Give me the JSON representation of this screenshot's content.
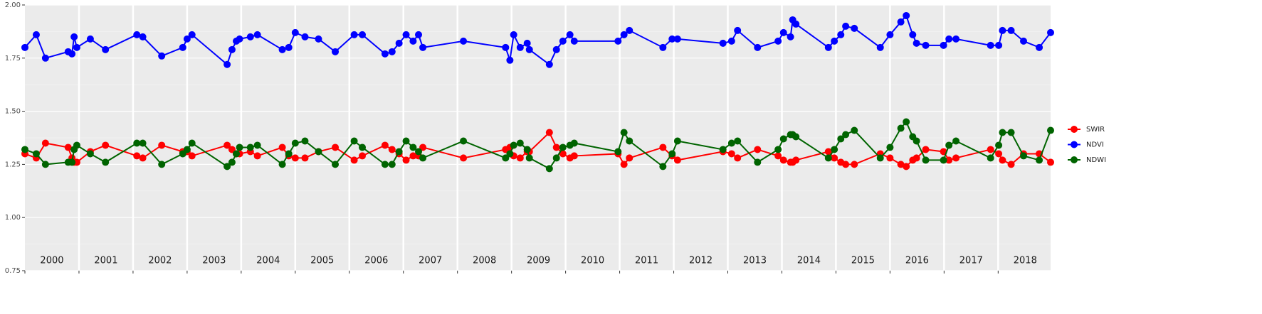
{
  "chart_data": {
    "type": "line",
    "x": [
      2000.0,
      2000.21,
      2000.38,
      2000.8,
      2000.87,
      2000.91,
      2000.96,
      2001.21,
      2001.49,
      2002.07,
      2002.18,
      2002.53,
      2002.92,
      2003.0,
      2003.09,
      2003.74,
      2003.83,
      2003.91,
      2003.97,
      2004.17,
      2004.3,
      2004.76,
      2004.88,
      2005.0,
      2005.18,
      2005.43,
      2005.74,
      2006.09,
      2006.24,
      2006.66,
      2006.79,
      2006.92,
      2007.05,
      2007.18,
      2007.28,
      2007.36,
      2008.11,
      2008.89,
      2008.97,
      2009.04,
      2009.16,
      2009.29,
      2009.33,
      2009.7,
      2009.83,
      2009.95,
      2010.08,
      2010.16,
      2010.97,
      2011.08,
      2011.18,
      2011.8,
      2011.97,
      2012.07,
      2012.91,
      2013.07,
      2013.18,
      2013.55,
      2013.93,
      2014.03,
      2014.16,
      2014.2,
      2014.26,
      2014.86,
      2014.97,
      2015.09,
      2015.18,
      2015.34,
      2015.82,
      2016.0,
      2016.2,
      2016.3,
      2016.42,
      2016.49,
      2016.66,
      2016.99,
      2017.09,
      2017.22,
      2017.86,
      2018.01,
      2018.08,
      2018.24,
      2018.47,
      2018.76,
      2018.97
    ],
    "series": [
      {
        "name": "SWIR",
        "color": "#ff0000",
        "values": [
          1.3,
          1.28,
          1.35,
          1.33,
          1.28,
          1.26,
          1.26,
          1.31,
          1.34,
          1.29,
          1.28,
          1.34,
          1.31,
          1.31,
          1.29,
          1.34,
          1.32,
          1.3,
          1.3,
          1.31,
          1.29,
          1.33,
          1.29,
          1.28,
          1.28,
          1.31,
          1.33,
          1.27,
          1.29,
          1.34,
          1.32,
          1.3,
          1.27,
          1.29,
          1.29,
          1.33,
          1.28,
          1.32,
          1.33,
          1.29,
          1.28,
          1.31,
          1.31,
          1.4,
          1.33,
          1.3,
          1.28,
          1.29,
          1.3,
          1.25,
          1.28,
          1.33,
          1.29,
          1.27,
          1.31,
          1.3,
          1.28,
          1.32,
          1.29,
          1.27,
          1.26,
          1.26,
          1.27,
          1.31,
          1.28,
          1.26,
          1.25,
          1.25,
          1.3,
          1.28,
          1.25,
          1.24,
          1.27,
          1.28,
          1.32,
          1.31,
          1.27,
          1.28,
          1.32,
          1.3,
          1.27,
          1.25,
          1.3,
          1.3,
          1.26
        ]
      },
      {
        "name": "NDVI",
        "color": "#0000ff",
        "values": [
          1.8,
          1.86,
          1.75,
          1.78,
          1.77,
          1.85,
          1.8,
          1.84,
          1.79,
          1.86,
          1.85,
          1.76,
          1.8,
          1.84,
          1.86,
          1.72,
          1.79,
          1.83,
          1.84,
          1.85,
          1.86,
          1.79,
          1.8,
          1.87,
          1.85,
          1.84,
          1.78,
          1.86,
          1.86,
          1.77,
          1.78,
          1.82,
          1.86,
          1.83,
          1.86,
          1.8,
          1.83,
          1.8,
          1.74,
          1.86,
          1.8,
          1.82,
          1.79,
          1.72,
          1.79,
          1.83,
          1.86,
          1.83,
          1.83,
          1.86,
          1.88,
          1.8,
          1.84,
          1.84,
          1.82,
          1.83,
          1.88,
          1.8,
          1.83,
          1.87,
          1.85,
          1.93,
          1.91,
          1.8,
          1.83,
          1.86,
          1.9,
          1.89,
          1.8,
          1.86,
          1.92,
          1.95,
          1.86,
          1.82,
          1.81,
          1.81,
          1.84,
          1.84,
          1.81,
          1.81,
          1.88,
          1.88,
          1.83,
          1.8,
          1.87
        ]
      },
      {
        "name": "NDWI",
        "color": "#006400",
        "values": [
          1.32,
          1.3,
          1.25,
          1.26,
          1.26,
          1.32,
          1.34,
          1.3,
          1.26,
          1.35,
          1.35,
          1.25,
          1.3,
          1.32,
          1.35,
          1.24,
          1.26,
          1.3,
          1.33,
          1.33,
          1.34,
          1.25,
          1.3,
          1.35,
          1.36,
          1.31,
          1.25,
          1.36,
          1.33,
          1.25,
          1.25,
          1.31,
          1.36,
          1.33,
          1.31,
          1.28,
          1.36,
          1.28,
          1.3,
          1.34,
          1.35,
          1.32,
          1.28,
          1.23,
          1.28,
          1.33,
          1.34,
          1.35,
          1.31,
          1.4,
          1.36,
          1.24,
          1.3,
          1.36,
          1.32,
          1.35,
          1.36,
          1.26,
          1.32,
          1.37,
          1.39,
          1.39,
          1.38,
          1.28,
          1.32,
          1.37,
          1.39,
          1.41,
          1.28,
          1.33,
          1.42,
          1.45,
          1.38,
          1.36,
          1.27,
          1.27,
          1.34,
          1.36,
          1.28,
          1.34,
          1.4,
          1.4,
          1.29,
          1.27,
          1.41
        ]
      }
    ],
    "xlim": [
      2000,
      2018.97
    ],
    "year_bands": [
      2000,
      2001,
      2002,
      2003,
      2004,
      2005,
      2006,
      2007,
      2008,
      2009,
      2010,
      2011,
      2012,
      2013,
      2014,
      2015,
      2016,
      2017,
      2018
    ],
    "ylim": [
      0.75,
      2.0
    ],
    "yticks": [
      {
        "value": 0.75,
        "label": "0.75"
      },
      {
        "value": 1.0,
        "label": "1.00"
      },
      {
        "value": 1.25,
        "label": "1.25"
      },
      {
        "value": 1.5,
        "label": "1.50"
      },
      {
        "value": 1.75,
        "label": "1.75"
      },
      {
        "value": 2.0,
        "label": "2.00"
      }
    ],
    "grid": true
  }
}
